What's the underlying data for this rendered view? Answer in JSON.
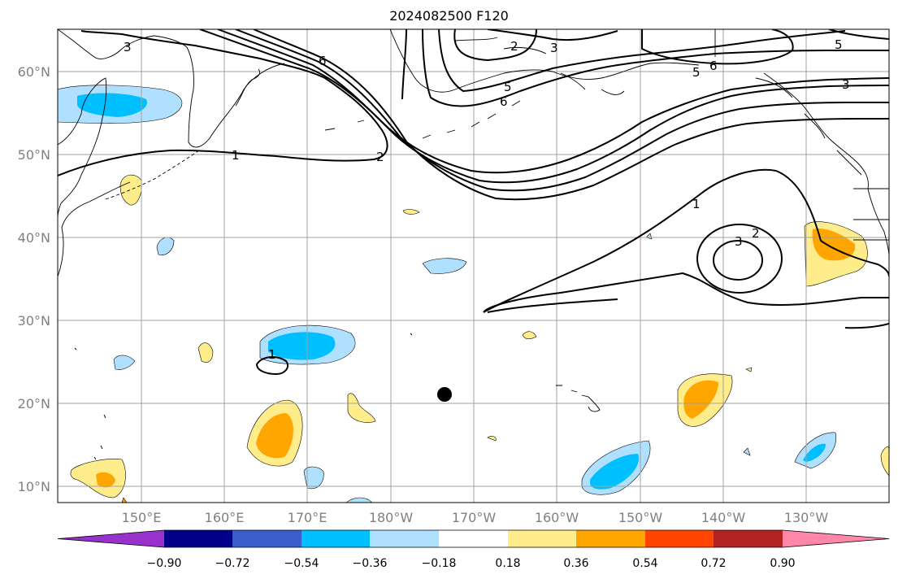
{
  "title": "2024082500 F120",
  "lat_labels": [
    "60°N",
    "50°N",
    "40°N",
    "30°N",
    "20°N",
    "10°N"
  ],
  "lon_labels": [
    "150°E",
    "160°E",
    "170°E",
    "180°W",
    "170°W",
    "160°W",
    "150°W",
    "140°W",
    "130°W"
  ],
  "colorbar": {
    "labels": [
      "−0.90",
      "−0.72",
      "−0.54",
      "−0.36",
      "−0.18",
      "0.18",
      "0.36",
      "0.54",
      "0.72",
      "0.90"
    ],
    "colors": [
      "#9932cc",
      "#00008b",
      "#3a5fcd",
      "#00bfff",
      "#b0e0ff",
      "#ffffff",
      "#ffec8b",
      "#ffa500",
      "#ff4500",
      "#b22222",
      "#ff88aa"
    ]
  },
  "contour_labels": [
    "3",
    "6",
    "2",
    "3",
    "5",
    "6",
    "5",
    "6",
    "5",
    "3",
    "1",
    "2",
    "1",
    "2",
    "3",
    "1"
  ],
  "marker": "storm-center-dot"
}
